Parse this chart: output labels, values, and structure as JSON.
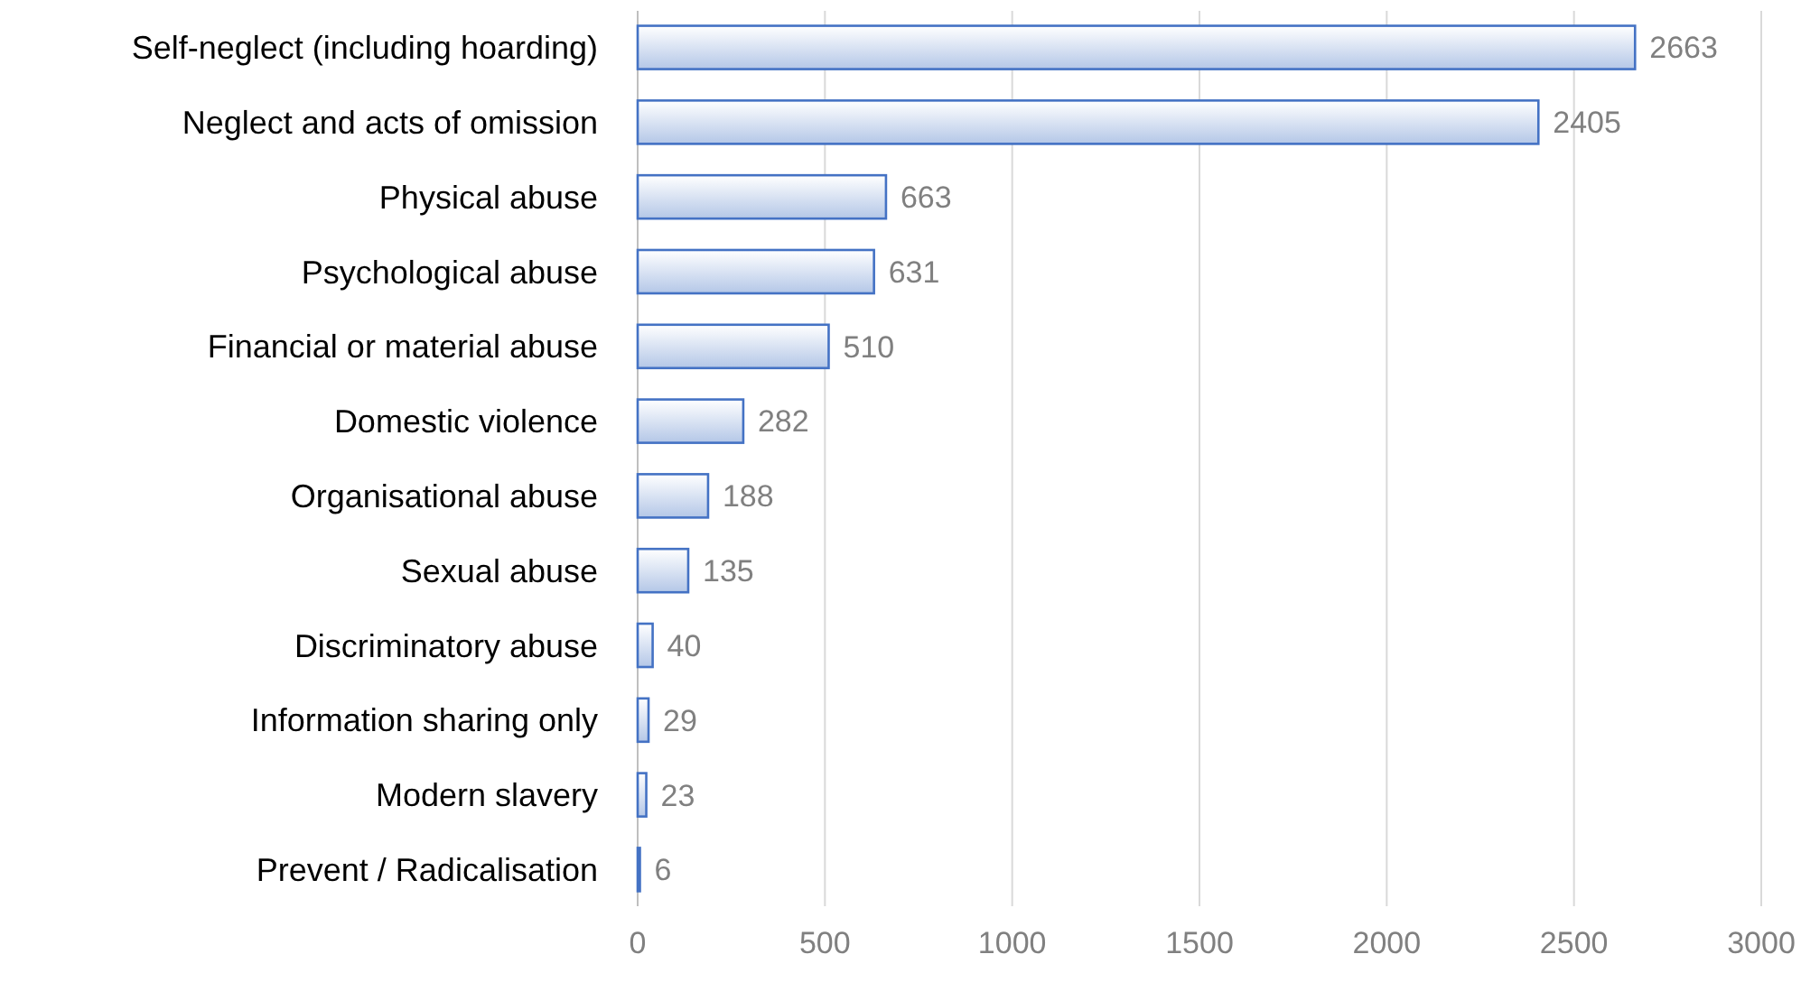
{
  "chart_data": {
    "type": "bar",
    "orientation": "horizontal",
    "categories": [
      "Self-neglect (including hoarding)",
      "Neglect and acts of omission",
      "Physical abuse",
      "Psychological abuse",
      "Financial or material abuse",
      "Domestic violence",
      "Organisational abuse",
      "Sexual abuse",
      "Discriminatory abuse",
      "Information sharing only",
      "Modern slavery",
      "Prevent / Radicalisation"
    ],
    "values": [
      2663,
      2405,
      663,
      631,
      510,
      282,
      188,
      135,
      40,
      29,
      23,
      6
    ],
    "color": "#4472c4",
    "xlim": [
      0,
      3000
    ],
    "xticks": [
      0,
      500,
      1000,
      1500,
      2000,
      2500,
      3000
    ],
    "grid": "x",
    "data_labels": true
  }
}
